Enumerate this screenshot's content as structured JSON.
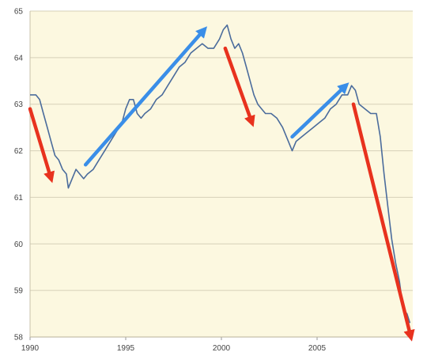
{
  "chart_data": {
    "type": "line",
    "title": "",
    "xlabel": "",
    "ylabel": "",
    "xlim": [
      1990,
      2010
    ],
    "ylim": [
      58,
      65
    ],
    "grid": true,
    "xticks": [
      1990,
      1995,
      2000,
      2005
    ],
    "yticks": [
      58,
      59,
      60,
      61,
      62,
      63,
      64,
      65
    ],
    "colors": {
      "plot_background": "#fcf8e0",
      "grid": "#d6d0b8",
      "line": "#4b6c9c",
      "down_arrow": "#e8321e",
      "up_arrow": "#3a8ee8"
    },
    "series": [
      {
        "points": [
          [
            1990.0,
            63.2
          ],
          [
            1990.3,
            63.2
          ],
          [
            1990.5,
            63.1
          ],
          [
            1990.7,
            62.8
          ],
          [
            1990.9,
            62.5
          ],
          [
            1991.1,
            62.2
          ],
          [
            1991.3,
            61.9
          ],
          [
            1991.5,
            61.8
          ],
          [
            1991.7,
            61.6
          ],
          [
            1991.9,
            61.5
          ],
          [
            1992.0,
            61.2
          ],
          [
            1992.2,
            61.4
          ],
          [
            1992.4,
            61.6
          ],
          [
            1992.6,
            61.5
          ],
          [
            1992.8,
            61.4
          ],
          [
            1993.0,
            61.5
          ],
          [
            1993.3,
            61.6
          ],
          [
            1993.6,
            61.8
          ],
          [
            1993.9,
            62.0
          ],
          [
            1994.2,
            62.2
          ],
          [
            1994.5,
            62.4
          ],
          [
            1994.8,
            62.6
          ],
          [
            1995.0,
            62.9
          ],
          [
            1995.2,
            63.1
          ],
          [
            1995.4,
            63.1
          ],
          [
            1995.6,
            62.8
          ],
          [
            1995.8,
            62.7
          ],
          [
            1996.0,
            62.8
          ],
          [
            1996.3,
            62.9
          ],
          [
            1996.6,
            63.1
          ],
          [
            1996.9,
            63.2
          ],
          [
            1997.2,
            63.4
          ],
          [
            1997.5,
            63.6
          ],
          [
            1997.8,
            63.8
          ],
          [
            1998.1,
            63.9
          ],
          [
            1998.4,
            64.1
          ],
          [
            1998.7,
            64.2
          ],
          [
            1999.0,
            64.3
          ],
          [
            1999.3,
            64.2
          ],
          [
            1999.6,
            64.2
          ],
          [
            1999.9,
            64.4
          ],
          [
            2000.1,
            64.6
          ],
          [
            2000.3,
            64.7
          ],
          [
            2000.5,
            64.4
          ],
          [
            2000.7,
            64.2
          ],
          [
            2000.9,
            64.3
          ],
          [
            2001.1,
            64.1
          ],
          [
            2001.3,
            63.8
          ],
          [
            2001.5,
            63.5
          ],
          [
            2001.7,
            63.2
          ],
          [
            2001.9,
            63.0
          ],
          [
            2002.1,
            62.9
          ],
          [
            2002.3,
            62.8
          ],
          [
            2002.6,
            62.8
          ],
          [
            2002.9,
            62.7
          ],
          [
            2003.2,
            62.5
          ],
          [
            2003.5,
            62.2
          ],
          [
            2003.7,
            62.0
          ],
          [
            2003.9,
            62.2
          ],
          [
            2004.2,
            62.3
          ],
          [
            2004.5,
            62.4
          ],
          [
            2004.8,
            62.5
          ],
          [
            2005.1,
            62.6
          ],
          [
            2005.4,
            62.7
          ],
          [
            2005.7,
            62.9
          ],
          [
            2006.0,
            63.0
          ],
          [
            2006.3,
            63.2
          ],
          [
            2006.6,
            63.2
          ],
          [
            2006.8,
            63.4
          ],
          [
            2007.0,
            63.3
          ],
          [
            2007.2,
            63.0
          ],
          [
            2007.5,
            62.9
          ],
          [
            2007.8,
            62.8
          ],
          [
            2008.1,
            62.8
          ],
          [
            2008.3,
            62.3
          ],
          [
            2008.5,
            61.5
          ],
          [
            2008.7,
            60.8
          ],
          [
            2008.9,
            60.1
          ],
          [
            2009.1,
            59.6
          ],
          [
            2009.3,
            59.2
          ],
          [
            2009.5,
            58.6
          ],
          [
            2009.7,
            58.5
          ],
          [
            2009.85,
            58.3
          ]
        ]
      }
    ],
    "annotations": [
      {
        "kind": "down-arrow",
        "from": [
          1990.0,
          62.9
        ],
        "to": [
          1991.1,
          61.4
        ]
      },
      {
        "kind": "up-arrow",
        "from": [
          1992.9,
          61.7
        ],
        "to": [
          1999.1,
          64.6
        ]
      },
      {
        "kind": "down-arrow",
        "from": [
          2000.2,
          64.2
        ],
        "to": [
          2001.6,
          62.6
        ]
      },
      {
        "kind": "up-arrow",
        "from": [
          2003.7,
          62.3
        ],
        "to": [
          2006.5,
          63.4
        ]
      },
      {
        "kind": "down-arrow",
        "from": [
          2006.9,
          63.0
        ],
        "to": [
          2009.9,
          58.0
        ]
      }
    ]
  }
}
